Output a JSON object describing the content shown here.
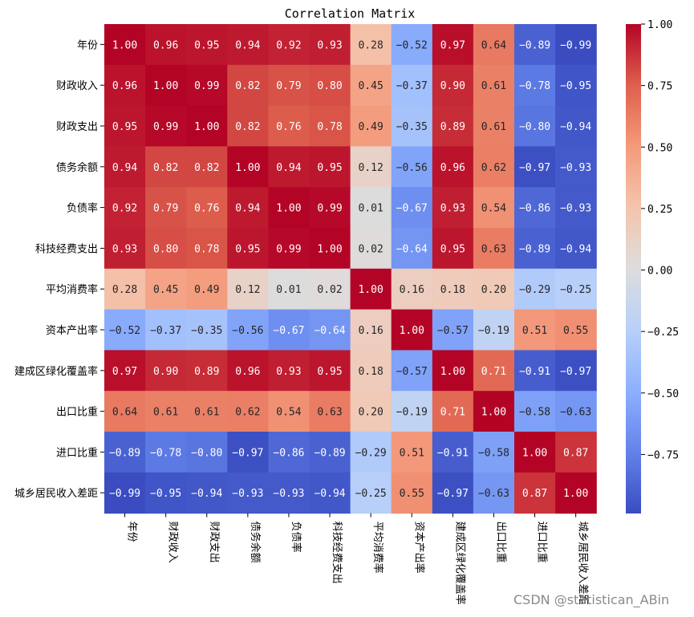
{
  "chart_data": {
    "type": "heatmap",
    "title": "Correlation Matrix",
    "labels": [
      "年份",
      "财政收入",
      "财政支出",
      "债务余额",
      "负债率",
      "科技经费支出",
      "平均消费率",
      "资本产出率",
      "建成区绿化覆盖率",
      "出口比重",
      "进口比重",
      "城乡居民收入差距"
    ],
    "values": [
      [
        1.0,
        0.96,
        0.95,
        0.94,
        0.92,
        0.93,
        0.28,
        -0.52,
        0.97,
        0.64,
        -0.89,
        -0.99
      ],
      [
        0.96,
        1.0,
        0.99,
        0.82,
        0.79,
        0.8,
        0.45,
        -0.37,
        0.9,
        0.61,
        -0.78,
        -0.95
      ],
      [
        0.95,
        0.99,
        1.0,
        0.82,
        0.76,
        0.78,
        0.49,
        -0.35,
        0.89,
        0.61,
        -0.8,
        -0.94
      ],
      [
        0.94,
        0.82,
        0.82,
        1.0,
        0.94,
        0.95,
        0.12,
        -0.56,
        0.96,
        0.62,
        -0.97,
        -0.93
      ],
      [
        0.92,
        0.79,
        0.76,
        0.94,
        1.0,
        0.99,
        0.01,
        -0.67,
        0.93,
        0.54,
        -0.86,
        -0.93
      ],
      [
        0.93,
        0.8,
        0.78,
        0.95,
        0.99,
        1.0,
        0.02,
        -0.64,
        0.95,
        0.63,
        -0.89,
        -0.94
      ],
      [
        0.28,
        0.45,
        0.49,
        0.12,
        0.01,
        0.02,
        1.0,
        0.16,
        0.18,
        0.2,
        -0.29,
        -0.25
      ],
      [
        -0.52,
        -0.37,
        -0.35,
        -0.56,
        -0.67,
        -0.64,
        0.16,
        1.0,
        -0.57,
        -0.19,
        0.51,
        0.55
      ],
      [
        0.97,
        0.9,
        0.89,
        0.96,
        0.93,
        0.95,
        0.18,
        -0.57,
        1.0,
        0.71,
        -0.91,
        -0.97
      ],
      [
        0.64,
        0.61,
        0.61,
        0.62,
        0.54,
        0.63,
        0.2,
        -0.19,
        0.71,
        1.0,
        -0.58,
        -0.63
      ],
      [
        -0.89,
        -0.78,
        -0.8,
        -0.97,
        -0.86,
        -0.89,
        -0.29,
        0.51,
        -0.91,
        -0.58,
        1.0,
        0.87
      ],
      [
        -0.99,
        -0.95,
        -0.94,
        -0.93,
        -0.93,
        -0.94,
        -0.25,
        0.55,
        -0.97,
        -0.63,
        0.87,
        1.0
      ]
    ],
    "colormap": "coolwarm",
    "vmin": -0.99,
    "vmax": 1.0,
    "colorbar_ticks": [
      "1.00",
      "0.75",
      "0.50",
      "0.25",
      "0.00",
      "−0.25",
      "−0.50",
      "−0.75"
    ],
    "annotations_format": "2 decimals",
    "grid": false,
    "colorbar_position": "right"
  },
  "watermark": "CSDN @statistican_ABin"
}
